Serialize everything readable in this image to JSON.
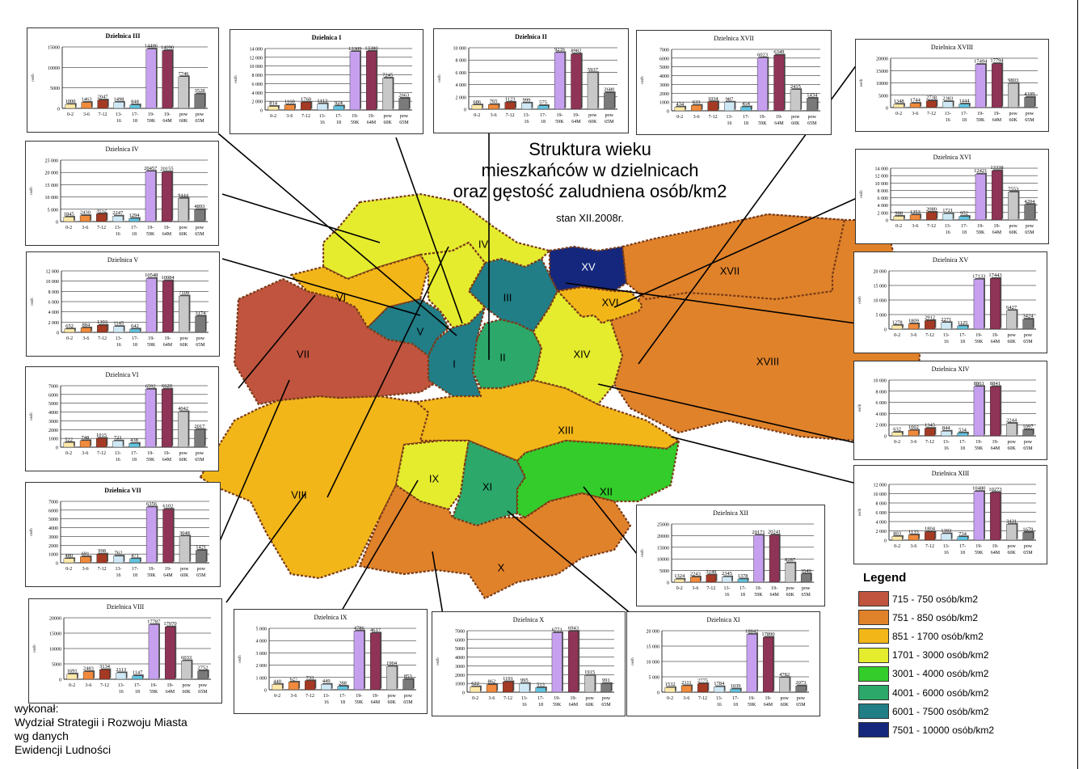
{
  "title": [
    "Struktura wieku",
    "mieszkańców w dzielnicach",
    "oraz gęstość zaludniena osób/km2"
  ],
  "subtitle": "stan XII.2008r.",
  "credits": [
    "wykonał:",
    "Wydział Strategii i Rozwoju Miasta",
    "wg danych",
    "Ewidencji Ludności"
  ],
  "legend": {
    "title": "Legend",
    "items": [
      {
        "label": "715 - 750 osób/km2",
        "color": "#c0543e"
      },
      {
        "label": "751 - 850 osób/km2",
        "color": "#e0822a"
      },
      {
        "label": "851 - 1700 osób/km2",
        "color": "#f2b619"
      },
      {
        "label": "1701 - 3000 osób/km2",
        "color": "#e5ec2e"
      },
      {
        "label": "3001 - 4000 osób/km2",
        "color": "#33cc2b"
      },
      {
        "label": "4001 - 6000 osób/km2",
        "color": "#2ba86a"
      },
      {
        "label": "6001 - 7500 osób/km2",
        "color": "#217d86"
      },
      {
        "label": "7501 - 10000 osób/km2",
        "color": "#14277c"
      }
    ]
  },
  "districts": [
    {
      "label": "I",
      "color": "#217d86"
    },
    {
      "label": "II",
      "color": "#2ba86a"
    },
    {
      "label": "III",
      "color": "#217d86"
    },
    {
      "label": "IV",
      "color": "#e5ec2e"
    },
    {
      "label": "V",
      "color": "#217d86"
    },
    {
      "label": "VI",
      "color": "#f2b619"
    },
    {
      "label": "VII",
      "color": "#c0543e"
    },
    {
      "label": "VIII",
      "color": "#f2b619"
    },
    {
      "label": "IX",
      "color": "#e5ec2e"
    },
    {
      "label": "X",
      "color": "#e0822a"
    },
    {
      "label": "XI",
      "color": "#2ba86a"
    },
    {
      "label": "XII",
      "color": "#33cc2b"
    },
    {
      "label": "XIII",
      "color": "#f2b619"
    },
    {
      "label": "XIV",
      "color": "#e5ec2e"
    },
    {
      "label": "XV",
      "color": "#14277c"
    },
    {
      "label": "XVI",
      "color": "#f2b619"
    },
    {
      "label": "XVII",
      "color": "#e0822a"
    },
    {
      "label": "XVIII",
      "color": "#e0822a"
    }
  ],
  "chart_data": {
    "type": "bar",
    "categories": [
      "0-2",
      "3-6",
      "7-12",
      "13-16",
      "17-18",
      "19-59K",
      "19-64M",
      "pow 60K",
      "pow 65M"
    ],
    "tick_lines": [
      [
        "0-2"
      ],
      [
        "3-6"
      ],
      [
        "7-12"
      ],
      [
        "13-",
        "16"
      ],
      [
        "17-",
        "18"
      ],
      [
        "19-",
        "59K"
      ],
      [
        "19-",
        "64M"
      ],
      [
        "pow",
        "60K"
      ],
      [
        "pow",
        "65M"
      ]
    ],
    "ylabel": "osób",
    "bar_colors": [
      "#ffe9a8",
      "#f08a3c",
      "#a53a24",
      "#cfe8f5",
      "#62c4e0",
      "#c6a0ef",
      "#8f3456",
      "#c8c8c8",
      "#7a7a7a"
    ],
    "charts": [
      {
        "title": "Dzielnica III",
        "values": [
          1000,
          1463,
          2047,
          1498,
          848,
          14486,
          14090,
          7746,
          3528
        ],
        "ylim": [
          0,
          15000
        ],
        "yticks": [
          "0",
          "5000",
          "10000",
          "15000"
        ],
        "labels": [
          "1000",
          "1463",
          "2047",
          "1498",
          "848",
          "14486",
          "14090",
          "7746",
          "3528"
        ]
      },
      {
        "title": "Dzielnica I",
        "values": [
          814,
          1160,
          1760,
          1413,
          924,
          13309,
          13380,
          7245,
          2663
        ],
        "ylim": [
          0,
          14000
        ],
        "yticks": [
          "0",
          "2 000",
          "4 000",
          "6 000",
          "8 000",
          "10 000",
          "12 000",
          "14 000"
        ],
        "labels": [
          "814",
          "1160",
          "1760",
          "1413",
          "924",
          "13309",
          "13380",
          "7245",
          "2663"
        ]
      },
      {
        "title": "Dzielnica II",
        "values": [
          686,
          765,
          1123,
          999,
          575,
          9216,
          8982,
          5937,
          2680
        ],
        "ylim": [
          0,
          10000
        ],
        "yticks": [
          "0",
          "2 000",
          "4 000",
          "6 000",
          "8 000",
          "10 000"
        ],
        "labels": [
          "686",
          "765",
          "1123",
          "999",
          "575",
          "9216",
          "8982",
          "5937",
          "2680"
        ]
      },
      {
        "title": "Dzielnica XVII",
        "values": [
          434,
          633,
          1034,
          987,
          454,
          6023,
          6349,
          2415,
          1434
        ],
        "ylim": [
          0,
          7000
        ],
        "yticks": [
          "0",
          "1000",
          "2000",
          "3000",
          "4000",
          "5000",
          "6000",
          "7000"
        ],
        "labels": [
          "434",
          "633",
          "1034",
          "987",
          "454",
          "6023",
          "6349",
          "2415",
          "1434"
        ]
      },
      {
        "title": "Dzielnica XVIII",
        "values": [
          1348,
          1744,
          2738,
          2383,
          1444,
          17494,
          17794,
          9803,
          4189
        ],
        "ylim": [
          0,
          20000
        ],
        "yticks": [
          "0",
          "5000",
          "10000",
          "15000",
          "20000"
        ],
        "labels": [
          "1348",
          "1744",
          "2738",
          "2383",
          "1444",
          "17494",
          "17794",
          "9803",
          "4189"
        ]
      },
      {
        "title": "Dzielnica IV",
        "values": [
          1845,
          2430,
          3152,
          2247,
          1294,
          20457,
          20155,
          9444,
          4893
        ],
        "ylim": [
          0,
          25000
        ],
        "yticks": [
          "0",
          "5 000",
          "10 000",
          "15 000",
          "20 000",
          "25 000"
        ],
        "labels": [
          "1845",
          "2430",
          "3152",
          "2247",
          "1294",
          "20457",
          "20155",
          "9444",
          "4893"
        ]
      },
      {
        "title": "Dzielnica XVI",
        "values": [
          988,
          1353,
          2080,
          1721,
          952,
          12421,
          13338,
          7553,
          4204
        ],
        "ylim": [
          0,
          14000
        ],
        "yticks": [
          "0",
          "2 000",
          "4 000",
          "6 000",
          "8 000",
          "10 000",
          "12 000",
          "14 000"
        ],
        "labels": [
          "988",
          "1353",
          "2080",
          "1721",
          "952",
          "12421",
          "13338",
          "7553",
          "4204"
        ]
      },
      {
        "title": "Dzielnica V",
        "values": [
          652,
          884,
          1393,
          1145,
          642,
          10548,
          10084,
          7109,
          3174
        ],
        "ylim": [
          0,
          12000
        ],
        "yticks": [
          "0",
          "2 000",
          "4 000",
          "6 000",
          "8 000",
          "10 000",
          "12 000"
        ],
        "labels": [
          "652",
          "884",
          "1393",
          "1145",
          "642",
          "10548",
          "10084",
          "7109",
          "3174"
        ]
      },
      {
        "title": "Dzielnica XV",
        "values": [
          1278,
          1809,
          2912,
          2271,
          1125,
          17133,
          17443,
          6427,
          3424
        ],
        "ylim": [
          0,
          20000
        ],
        "yticks": [
          "0",
          "5 000",
          "10 000",
          "15 000",
          "20 000"
        ],
        "labels": [
          "1278",
          "1809",
          "2912",
          "2271",
          "1125",
          "17133",
          "17443",
          "6427",
          "3424"
        ]
      },
      {
        "title": "Dzielnica VI",
        "values": [
          522,
          748,
          1015,
          721,
          438,
          6592,
          6620,
          4042,
          2017
        ],
        "ylim": [
          0,
          7000
        ],
        "yticks": [
          "0",
          "1000",
          "2000",
          "3000",
          "4000",
          "5000",
          "6000",
          "7000"
        ],
        "labels": [
          "522",
          "748",
          "1015",
          "721",
          "438",
          "6592",
          "6620",
          "4042",
          "2017"
        ]
      },
      {
        "title": "Dzielnica XIV",
        "values": [
          632,
          1002,
          1345,
          844,
          534,
          8861,
          8841,
          2244,
          1097
        ],
        "ylim": [
          0,
          10000
        ],
        "yticks": [
          "0",
          "2 000",
          "4 000",
          "6 000",
          "8 000",
          "10 000"
        ],
        "labels": [
          "632",
          "1002",
          "1345",
          "844",
          "534",
          "8861",
          "8841",
          "2244",
          "1097"
        ]
      },
      {
        "title": "Dzielnica VII",
        "values": [
          480,
          691,
          998,
          762,
          471,
          6356,
          6102,
          3048,
          1421
        ],
        "ylim": [
          0,
          7000
        ],
        "yticks": [
          "0",
          "1000",
          "2000",
          "3000",
          "4000",
          "5000",
          "6000",
          "7000"
        ],
        "labels": [
          "480",
          "691",
          "998",
          "762",
          "471",
          "6356",
          "6102",
          "3048",
          "1421"
        ]
      },
      {
        "title": "Dzielnica XIII",
        "values": [
          803,
          1133,
          1804,
          1393,
          734,
          10480,
          10273,
          3431,
          1679
        ],
        "ylim": [
          0,
          12000
        ],
        "yticks": [
          "0",
          "2 000",
          "4 000",
          "6 000",
          "8 000",
          "10 000",
          "12 000"
        ],
        "labels": [
          "803",
          "1133",
          "1804",
          "1393",
          "734",
          "10480",
          "10273",
          "3431",
          "1679"
        ]
      },
      {
        "title": "Dzielnica XII",
        "values": [
          1324,
          2243,
          3149,
          2345,
          1378,
          20171,
          20241,
          8287,
          3549
        ],
        "ylim": [
          0,
          25000
        ],
        "yticks": [
          "0",
          "5000",
          "10000",
          "15000",
          "20000",
          "25000"
        ],
        "labels": [
          "1324",
          "2243",
          "3149",
          "2345",
          "1378",
          "20171",
          "20241",
          "8287",
          "3549"
        ]
      },
      {
        "title": "Dzielnica VIII",
        "values": [
          1691,
          2483,
          3134,
          2113,
          1147,
          17787,
          17070,
          6033,
          2752
        ],
        "ylim": [
          0,
          20000
        ],
        "yticks": [
          "0",
          "5000",
          "10000",
          "15000",
          "20000"
        ],
        "labels": [
          "1691",
          "2483",
          "3134",
          "2113",
          "1147",
          "17787",
          "17070",
          "6033",
          "2752"
        ]
      },
      {
        "title": "Dzielnica IX",
        "values": [
          440,
          627,
          733,
          449,
          288,
          4786,
          4617,
          1904,
          853
        ],
        "ylim": [
          0,
          5000
        ],
        "yticks": [
          "0",
          "1 000",
          "2 000",
          "3 000",
          "4 000",
          "5 000"
        ],
        "labels": [
          "440",
          "627",
          "733",
          "449",
          "288",
          "4786",
          "4617",
          "1904",
          "853"
        ]
      },
      {
        "title": "Dzielnica X",
        "values": [
          622,
          862,
          1191,
          995,
          513,
          6771,
          6943,
          1915,
          991
        ],
        "ylim": [
          0,
          7000
        ],
        "yticks": [
          "0",
          "1000",
          "2000",
          "3000",
          "4000",
          "5000",
          "6000",
          "7000"
        ],
        "labels": [
          "622",
          "862",
          "1191",
          "995",
          "513",
          "6771",
          "6943",
          "1915",
          "991"
        ]
      },
      {
        "title": "Dzielnica XI",
        "values": [
          1532,
          2111,
          2775,
          1784,
          1039,
          18842,
          17890,
          4782,
          2073
        ],
        "ylim": [
          0,
          20000
        ],
        "yticks": [
          "0",
          "5 000",
          "10 000",
          "15 000",
          "20 000"
        ],
        "labels": [
          "1532",
          "2111",
          "2775",
          "1784",
          "1039",
          "18842",
          "17890",
          "4782",
          "2073"
        ]
      }
    ]
  }
}
